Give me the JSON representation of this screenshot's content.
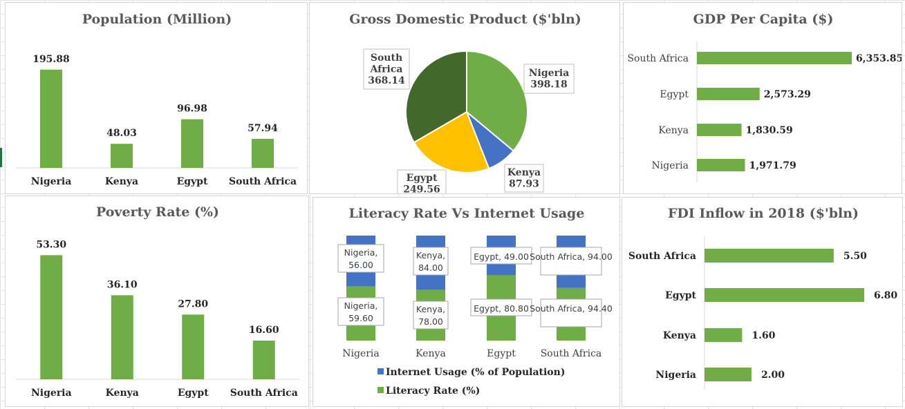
{
  "colors": {
    "green": "#70ad47",
    "blue": "#4472c4",
    "yellow": "#ffc000",
    "darkgreen": "#43682b",
    "title": "#595959",
    "axis": "#d9d9d9"
  },
  "chart_data": [
    {
      "id": "population",
      "type": "bar",
      "title": "Population (Million)",
      "categories": [
        "Nigeria",
        "Kenya",
        "Egypt",
        "South Africa"
      ],
      "values": [
        195.88,
        48.03,
        96.98,
        57.94
      ],
      "labels": [
        "195.88",
        "48.03",
        "96.98",
        "57.94"
      ],
      "ylim": [
        0,
        220
      ],
      "grid": false
    },
    {
      "id": "gdp",
      "type": "pie",
      "title": "Gross Domestic Product ($'bln)",
      "categories": [
        "Nigeria",
        "Kenya",
        "Egypt",
        "South Africa"
      ],
      "values": [
        398.18,
        87.93,
        249.56,
        368.14
      ],
      "labels": [
        "398.18",
        "87.93",
        "249.56",
        "368.14"
      ]
    },
    {
      "id": "gdp_per_capita",
      "type": "bar",
      "orientation": "horizontal",
      "title": "GDP Per Capita ($)",
      "categories": [
        "South Africa",
        "Egypt",
        "Kenya",
        "Nigeria"
      ],
      "values": [
        6353.85,
        2573.29,
        1830.59,
        1971.79
      ],
      "labels": [
        "6,353.85",
        "2,573.29",
        "1,830.59",
        "1,971.79"
      ],
      "xlim": [
        0,
        6353.85
      ],
      "grid": false
    },
    {
      "id": "poverty",
      "type": "bar",
      "title": "Poverty Rate (%)",
      "categories": [
        "Nigeria",
        "Kenya",
        "Egypt",
        "South Africa"
      ],
      "values": [
        53.3,
        36.1,
        27.8,
        16.6
      ],
      "labels": [
        "53.30",
        "36.10",
        "27.80",
        "16.60"
      ],
      "ylim": [
        0,
        60
      ],
      "grid": false
    },
    {
      "id": "literacy_internet",
      "type": "bar",
      "stacked": true,
      "percent": true,
      "title": "Literacy Rate Vs Internet Usage",
      "categories": [
        "Nigeria",
        "Kenya",
        "Egypt",
        "South Africa"
      ],
      "series": [
        {
          "name": "Literacy Rate (%)",
          "values": [
            59.6,
            78.0,
            80.8,
            94.4
          ],
          "labels": [
            "Nigeria, 59.60",
            "Kenya, 78.00",
            "Egypt,  80.80",
            "South Africa, 94.40"
          ]
        },
        {
          "name": "Internet Usage (% of Population)",
          "values": [
            56.0,
            84.0,
            49.0,
            94.0
          ],
          "labels": [
            "Nigeria, 56.00",
            "Kenya, 84.00",
            "Egypt,  49.00",
            "South Africa, 94.00"
          ]
        }
      ],
      "legend": [
        "Internet Usage (% of Population)",
        "Literacy Rate (%)"
      ],
      "legend_position": "bottom"
    },
    {
      "id": "fdi",
      "type": "bar",
      "orientation": "horizontal",
      "title": "FDI Inflow in 2018 ($'bln)",
      "categories": [
        "South Africa",
        "Egypt",
        "Kenya",
        "Nigeria"
      ],
      "values": [
        5.5,
        6.8,
        1.6,
        2.0
      ],
      "labels": [
        "5.50",
        "6.80",
        "1.60",
        "2.00"
      ],
      "xlim": [
        0,
        6.8
      ],
      "grid": false
    }
  ]
}
